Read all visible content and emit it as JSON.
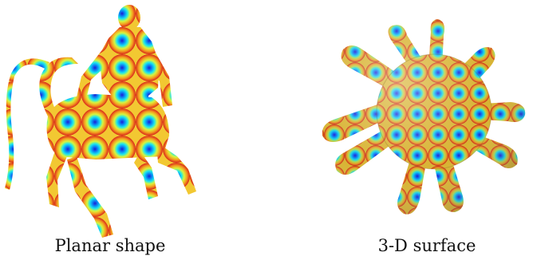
{
  "figure": {
    "left_caption": "Planar shape",
    "right_caption": "3-D surface"
  }
}
